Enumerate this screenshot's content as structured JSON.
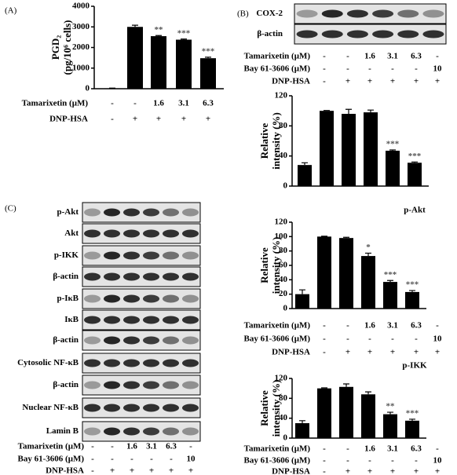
{
  "chart_data": [
    {
      "type": "bar",
      "ylabel": [
        "PGD₂",
        "(pg/10⁶ cells)"
      ],
      "categories": [
        null,
        null,
        null,
        null,
        null
      ],
      "values": [
        20,
        3000,
        2550,
        2380,
        1480
      ],
      "errors": [
        10,
        80,
        30,
        30,
        50
      ],
      "value_labels": [
        null,
        null,
        "**",
        "***",
        "***"
      ],
      "ylim": [
        0,
        4000
      ],
      "yticks": [
        0,
        1000,
        2000,
        3000,
        4000
      ],
      "color": "#000000",
      "treatments": [
        {
          "label": "Tamarixetin (μM)",
          "values": [
            "-",
            "-",
            "1.6",
            "3.1",
            "6.3"
          ]
        },
        {
          "label": "DNP-HSA",
          "values": [
            "-",
            "+",
            "+",
            "+",
            "+"
          ]
        }
      ]
    },
    {
      "type": "bar",
      "ylabel": [
        "Relative",
        "intensity (%)"
      ],
      "categories": [
        null,
        null,
        null,
        null,
        null,
        null
      ],
      "values": [
        28,
        100,
        96,
        98,
        47,
        31
      ],
      "errors": [
        3,
        0.5,
        6,
        3,
        1,
        1
      ],
      "value_labels": [
        null,
        null,
        null,
        null,
        "***",
        "***"
      ],
      "ylim": [
        0,
        120
      ],
      "yticks": [
        0,
        40,
        80,
        120
      ],
      "color": "#000000"
    },
    {
      "type": "bar",
      "title": "p-Akt",
      "ylabel": [
        "Relative",
        "intensity (%)"
      ],
      "categories": [
        null,
        null,
        null,
        null,
        null,
        null
      ],
      "values": [
        20,
        100,
        98,
        73,
        37,
        23
      ],
      "errors": [
        6,
        0.5,
        1,
        4,
        2,
        2
      ],
      "value_labels": [
        null,
        null,
        null,
        "*",
        "***",
        "***"
      ],
      "ylim": [
        0,
        120
      ],
      "yticks": [
        0,
        20,
        40,
        60,
        80,
        100,
        120
      ],
      "color": "#000000",
      "treatments": [
        {
          "label": "Tamarixetin (μM)",
          "values": [
            "-",
            "-",
            "1.6",
            "3.1",
            "6.3",
            "-"
          ]
        },
        {
          "label": "Bay 61-3606 (μM)",
          "values": [
            "-",
            "-",
            "-",
            "-",
            "-",
            "10"
          ]
        },
        {
          "label": "DNP-HSA",
          "values": [
            "-",
            "+",
            "+",
            "+",
            "+",
            "+"
          ]
        }
      ]
    },
    {
      "type": "bar",
      "title": "p-IKK",
      "ylabel": [
        "Relative",
        "intensity (%)"
      ],
      "categories": [
        null,
        null,
        null,
        null,
        null,
        null
      ],
      "values": [
        30,
        100,
        103,
        88,
        48,
        35
      ],
      "errors": [
        5,
        1,
        6,
        5,
        4,
        3
      ],
      "value_labels": [
        null,
        null,
        null,
        null,
        "**",
        "***"
      ],
      "ylim": [
        0,
        120
      ],
      "yticks": [
        0,
        40,
        80,
        120
      ],
      "color": "#000000",
      "treatments": [
        {
          "label": "Tamarixetin (μM)",
          "values": [
            "-",
            "-",
            "1.6",
            "3.1",
            "6.3",
            "-"
          ]
        },
        {
          "label": "Bay 61-3606 (μM)",
          "values": [
            "-",
            "-",
            "-",
            "-",
            "-",
            "10"
          ]
        },
        {
          "label": "DNP-HSA",
          "values": [
            "-",
            "+",
            "+",
            "+",
            "+",
            "+"
          ]
        }
      ]
    }
  ],
  "panels": [
    {
      "label": "(A)"
    },
    {
      "label": "(B)",
      "blots": [
        "COX-2",
        "β-actin"
      ],
      "treatments": [
        {
          "label": "Tamarixetin (μM)",
          "values": [
            "-",
            "-",
            "1.6",
            "3.1",
            "6.3",
            "-"
          ]
        },
        {
          "label": "Bay 61-3606 (μM)",
          "values": [
            "-",
            "-",
            "-",
            "-",
            "-",
            "10"
          ]
        },
        {
          "label": "DNP-HSA",
          "values": [
            "-",
            "+",
            "+",
            "+",
            "+",
            "+"
          ]
        }
      ]
    },
    {
      "label": "(C)",
      "blots": [
        "p-Akt",
        "Akt",
        "p-IKK",
        "β-actin",
        "p-IκB",
        "IκB",
        "β-actin",
        "Cytosolic NF-κB",
        "β-actin",
        "Nuclear NF-κB",
        "Lamin B"
      ],
      "treatments": [
        {
          "label": "Tamarixetin (μM)",
          "values": [
            "-",
            "-",
            "1.6",
            "3.1",
            "6.3",
            "-"
          ]
        },
        {
          "label": "Bay 61-3606 (μM)",
          "values": [
            "-",
            "-",
            "-",
            "-",
            "-",
            "10"
          ]
        },
        {
          "label": "DNP-HSA",
          "values": [
            "-",
            "+",
            "+",
            "+",
            "+",
            "+"
          ]
        }
      ]
    }
  ]
}
